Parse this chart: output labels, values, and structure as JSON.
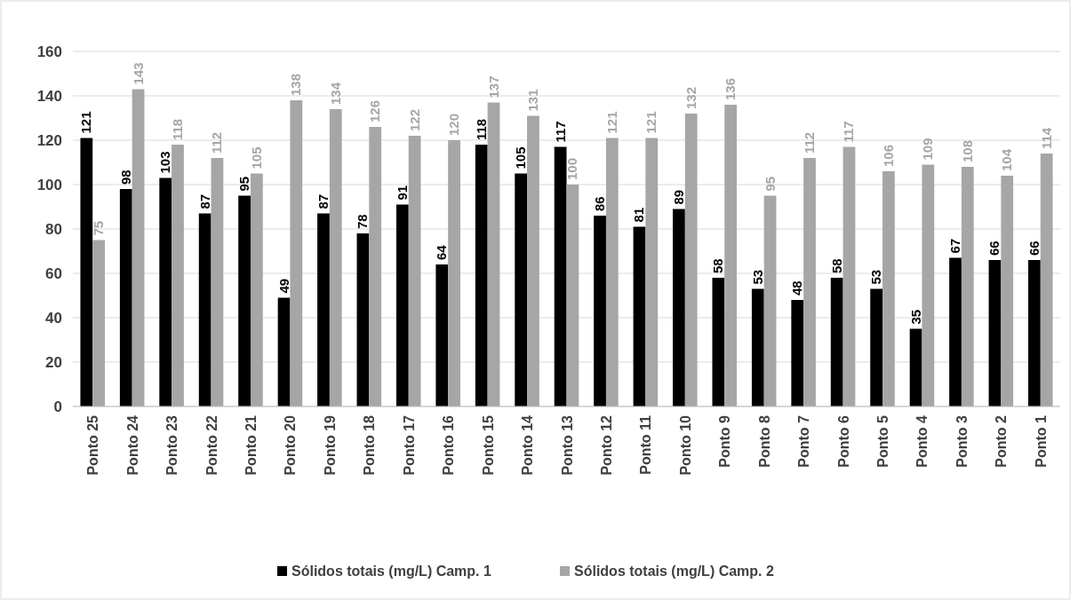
{
  "chart_data": {
    "type": "bar",
    "categories": [
      "Ponto 25",
      "Ponto 24",
      "Ponto 23",
      "Ponto 22",
      "Ponto 21",
      "Ponto 20",
      "Ponto 19",
      "Ponto 18",
      "Ponto 17",
      "Ponto 16",
      "Ponto 15",
      "Ponto 14",
      "Ponto 13",
      "Ponto 12",
      "Ponto 11",
      "Ponto 10",
      "Ponto 9",
      "Ponto 8",
      "Ponto 7",
      "Ponto 6",
      "Ponto 5",
      "Ponto 4",
      "Ponto 3",
      "Ponto 2",
      "Ponto 1"
    ],
    "series": [
      {
        "name": "Sólidos totais (mg/L) Camp. 1",
        "color": "#000000",
        "values": [
          121,
          98,
          103,
          87,
          95,
          49,
          87,
          78,
          91,
          64,
          118,
          105,
          117,
          86,
          81,
          89,
          58,
          53,
          48,
          58,
          53,
          35,
          67,
          66,
          66
        ]
      },
      {
        "name": "Sólidos totais (mg/L) Camp. 2",
        "color": "#a6a6a6",
        "values": [
          75,
          143,
          118,
          112,
          105,
          138,
          134,
          126,
          122,
          120,
          137,
          131,
          100,
          121,
          121,
          132,
          136,
          95,
          112,
          117,
          106,
          109,
          108,
          104,
          114
        ]
      }
    ],
    "ylim": [
      0,
      160
    ],
    "yticks": [
      0,
      20,
      40,
      60,
      80,
      100,
      120,
      140,
      160
    ],
    "grid": "y",
    "legend": "bottom",
    "data_labels": true
  }
}
